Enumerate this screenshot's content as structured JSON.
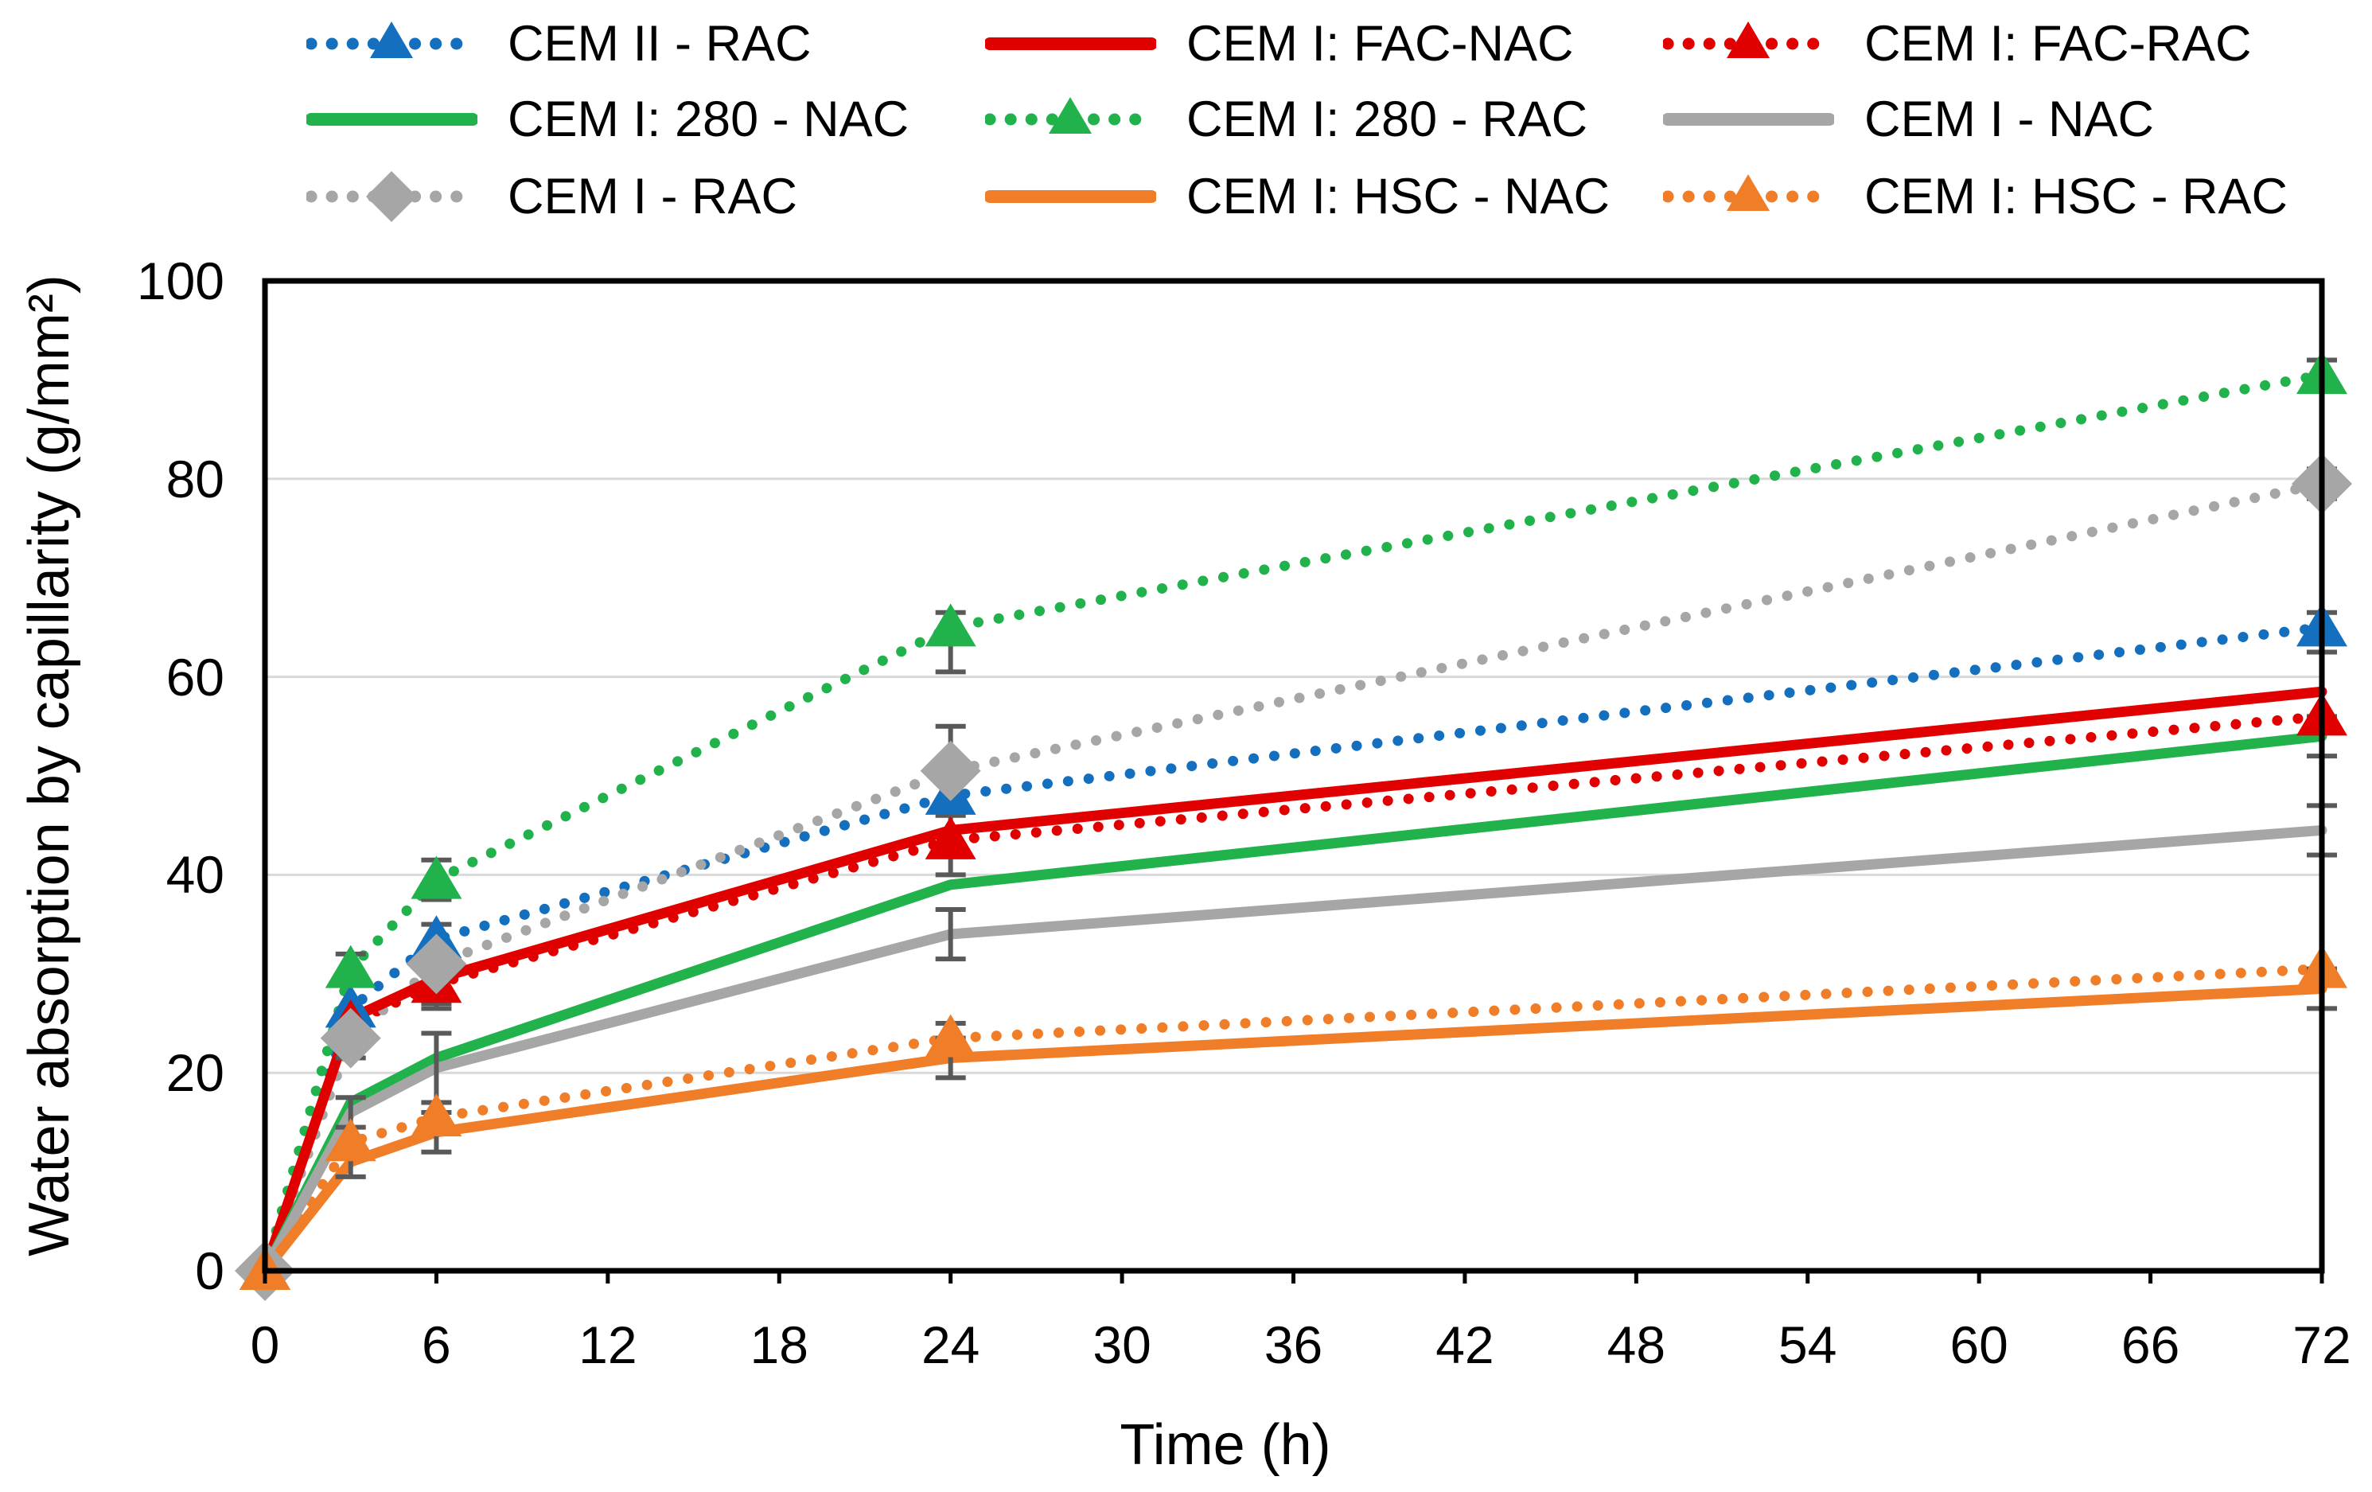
{
  "chart_data": {
    "type": "line",
    "title": "",
    "xlabel": "Time (h)",
    "ylabel": "Water absorption by capillarity (g/mm²)",
    "xlim": [
      0,
      72
    ],
    "ylim": [
      0,
      100
    ],
    "xticks": [
      0,
      6,
      12,
      18,
      24,
      30,
      36,
      42,
      48,
      54,
      60,
      66,
      72
    ],
    "yticks": [
      0,
      20,
      40,
      60,
      80,
      100
    ],
    "grid": "horizontal",
    "legend_position": "top",
    "x": [
      0,
      3,
      6,
      24,
      72
    ],
    "series": [
      {
        "name": "CEM II - RAC",
        "color": "#146FBE",
        "style": "dotted",
        "marker": "triangle",
        "values": [
          0,
          26.5,
          33.5,
          48,
          65
        ]
      },
      {
        "name": "CEM I: FAC-NAC",
        "color": "#E00000",
        "style": "solid",
        "marker": "none",
        "values": [
          0,
          25.5,
          29.5,
          44.5,
          58.5
        ]
      },
      {
        "name": "CEM I: FAC-RAC",
        "color": "#E00000",
        "style": "dotted",
        "marker": "triangle",
        "values": [
          0,
          25,
          29,
          43.5,
          56
        ]
      },
      {
        "name": "CEM I: 280 - NAC",
        "color": "#21B24C",
        "style": "solid",
        "marker": "none",
        "values": [
          0,
          17,
          21.5,
          39,
          54
        ]
      },
      {
        "name": "CEM I: 280 - RAC",
        "color": "#21B24C",
        "style": "dotted",
        "marker": "triangle",
        "values": [
          0,
          30.5,
          39.5,
          65,
          90.5
        ]
      },
      {
        "name": "CEM I - NAC",
        "color": "#A6A6A6",
        "style": "solid",
        "marker": "none",
        "values": [
          0,
          16,
          20.5,
          34,
          44.5
        ]
      },
      {
        "name": "CEM I - RAC",
        "color": "#A6A6A6",
        "style": "dotted",
        "marker": "diamond",
        "values": [
          0,
          23.5,
          31,
          50.5,
          79.5
        ]
      },
      {
        "name": "CEM I: HSC - NAC",
        "color": "#F07D28",
        "style": "solid",
        "marker": "none",
        "values": [
          0,
          11,
          14,
          21.5,
          28.5
        ]
      },
      {
        "name": "CEM I: HSC - RAC",
        "color": "#F07D28",
        "style": "dotted",
        "marker": "triangle",
        "values": [
          0,
          13,
          15.5,
          23.5,
          30.5
        ]
      }
    ],
    "error_bars": [
      {
        "series": "CEM I: 280 - RAC",
        "x": 3,
        "plus": 1.5,
        "minus": 1.5
      },
      {
        "series": "CEM I - RAC",
        "x": 3,
        "plus": 2,
        "minus": 2
      },
      {
        "series": "CEM I - NAC",
        "x": 3,
        "plus": 1.5,
        "minus": 1.5
      },
      {
        "series": "CEM I: HSC - NAC",
        "x": 3,
        "plus": 1.5,
        "minus": 1.5
      },
      {
        "series": "CEM I: 280 - RAC",
        "x": 6,
        "plus": 2,
        "minus": 2
      },
      {
        "series": "CEM I - RAC",
        "x": 6,
        "plus": 4,
        "minus": 4
      },
      {
        "series": "CEM I: FAC-RAC",
        "x": 6,
        "plus": 2.5,
        "minus": 2.5
      },
      {
        "series": "CEM I - NAC",
        "x": 6,
        "plus": 3.5,
        "minus": 3.5
      },
      {
        "series": "CEM I: HSC - NAC",
        "x": 6,
        "plus": 2,
        "minus": 2
      },
      {
        "series": "CEM I: 280 - RAC",
        "x": 24,
        "plus": 1.5,
        "minus": 4.5
      },
      {
        "series": "CEM I - RAC",
        "x": 24,
        "plus": 4.5,
        "minus": 4.5
      },
      {
        "series": "CEM II - RAC",
        "x": 24,
        "plus": 1.5,
        "minus": 1.5
      },
      {
        "series": "CEM I: FAC-RAC",
        "x": 24,
        "plus": 3.5,
        "minus": 3.5
      },
      {
        "series": "CEM I - NAC",
        "x": 24,
        "plus": 2.5,
        "minus": 2.5
      },
      {
        "series": "CEM I: HSC - NAC",
        "x": 24,
        "plus": 2,
        "minus": 2
      },
      {
        "series": "CEM I: HSC - RAC",
        "x": 24,
        "plus": 1.5,
        "minus": 1.5
      },
      {
        "series": "CEM I: 280 - RAC",
        "x": 72,
        "plus": 1.5,
        "minus": 1.5
      },
      {
        "series": "CEM I - RAC",
        "x": 72,
        "plus": 1.5,
        "minus": 1.5
      },
      {
        "series": "CEM II - RAC",
        "x": 72,
        "plus": 1.5,
        "minus": 1.5
      },
      {
        "series": "CEM I: FAC-NAC",
        "x": 72,
        "plus": 4,
        "minus": 4
      },
      {
        "series": "CEM I: 280 - NAC",
        "x": 72,
        "plus": 2,
        "minus": 2
      },
      {
        "series": "CEM I - NAC",
        "x": 72,
        "plus": 2.5,
        "minus": 2.5
      },
      {
        "series": "CEM I: HSC - NAC",
        "x": 72,
        "plus": 2,
        "minus": 2
      }
    ],
    "colors": {
      "gridline": "#D9D9D9",
      "axis": "#000000",
      "error_bar": "#595959",
      "blue": "#146FBE",
      "red": "#E00000",
      "green": "#21B24C",
      "gray": "#A6A6A6",
      "orange": "#F07D28"
    }
  }
}
